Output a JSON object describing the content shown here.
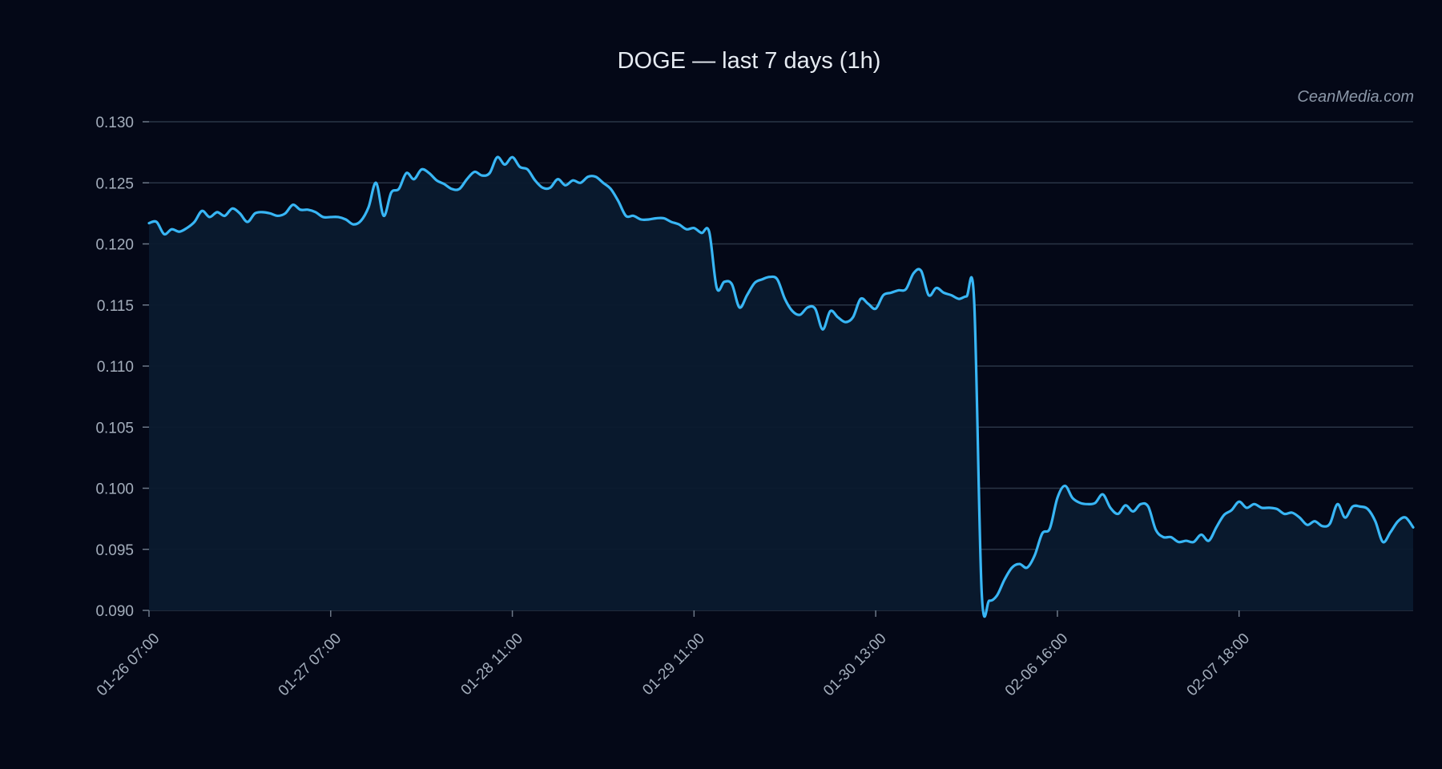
{
  "colors": {
    "background": "#040817",
    "line": "#38b6f5",
    "area": "#0a1a2e",
    "grid": "#2a3546",
    "text": "#a3adbb",
    "title": "#e6ebf2"
  },
  "watermark": "CeanMedia.com",
  "chart_data": {
    "type": "area",
    "title": "DOGE — last 7 days (1h)",
    "xlabel": "",
    "ylabel": "",
    "ylim": [
      0.09,
      0.13
    ],
    "grid": true,
    "legend": "none",
    "y_ticks": [
      "0.090",
      "0.095",
      "0.100",
      "0.105",
      "0.110",
      "0.115",
      "0.120",
      "0.125",
      "0.130"
    ],
    "x_ticks": [
      {
        "index": 0,
        "label": "01-26 07:00"
      },
      {
        "index": 24,
        "label": "01-27 07:00"
      },
      {
        "index": 48,
        "label": "01-28 11:00"
      },
      {
        "index": 72,
        "label": "01-29 11:00"
      },
      {
        "index": 96,
        "label": "01-30 13:00"
      },
      {
        "index": 120,
        "label": "02-06 16:00"
      },
      {
        "index": 144,
        "label": "02-07 18:00"
      }
    ],
    "series": [
      {
        "values": [
          0.1217,
          0.1218,
          0.1208,
          0.1212,
          0.121,
          0.1213,
          0.1218,
          0.1227,
          0.1222,
          0.1226,
          0.1223,
          0.1229,
          0.1225,
          0.1218,
          0.1225,
          0.1226,
          0.1225,
          0.1223,
          0.1225,
          0.1232,
          0.1228,
          0.1228,
          0.1226,
          0.1222,
          0.1222,
          0.1222,
          0.122,
          0.1216,
          0.1219,
          0.123,
          0.125,
          0.1223,
          0.1242,
          0.1245,
          0.1258,
          0.1253,
          0.1261,
          0.1258,
          0.1252,
          0.1249,
          0.1245,
          0.1245,
          0.1253,
          0.1259,
          0.1256,
          0.1258,
          0.1271,
          0.1265,
          0.1271,
          0.1263,
          0.1261,
          0.1252,
          0.1246,
          0.1246,
          0.1253,
          0.1248,
          0.1252,
          0.125,
          0.1255,
          0.1255,
          0.125,
          0.1245,
          0.1235,
          0.1223,
          0.1223,
          0.122,
          0.122,
          0.1221,
          0.1221,
          0.1218,
          0.1216,
          0.1212,
          0.1213,
          0.1209,
          0.121,
          0.1164,
          0.1169,
          0.1167,
          0.1148,
          0.1158,
          0.1168,
          0.1171,
          0.1173,
          0.1171,
          0.1155,
          0.1145,
          0.1142,
          0.1148,
          0.1147,
          0.113,
          0.1145,
          0.114,
          0.1136,
          0.114,
          0.1155,
          0.1151,
          0.1147,
          0.1158,
          0.116,
          0.1162,
          0.1163,
          0.1176,
          0.1178,
          0.1158,
          0.1164,
          0.116,
          0.1158,
          0.1155,
          0.1157,
          0.1154,
          0.0915,
          0.0908,
          0.0912,
          0.0925,
          0.0935,
          0.0938,
          0.0935,
          0.0945,
          0.0963,
          0.0967,
          0.0992,
          0.1002,
          0.0992,
          0.0988,
          0.0987,
          0.0988,
          0.0995,
          0.0984,
          0.0979,
          0.0986,
          0.0981,
          0.0987,
          0.0985,
          0.0966,
          0.096,
          0.096,
          0.0956,
          0.0957,
          0.0956,
          0.0962,
          0.0957,
          0.0968,
          0.0978,
          0.0982,
          0.0989,
          0.0984,
          0.0987,
          0.0984,
          0.0984,
          0.0983,
          0.0979,
          0.098,
          0.0976,
          0.097,
          0.0973,
          0.0969,
          0.0971,
          0.0987,
          0.0976,
          0.0985,
          0.0985,
          0.0983,
          0.0973,
          0.0956,
          0.0964,
          0.0973,
          0.0976,
          0.0968
        ]
      }
    ]
  }
}
